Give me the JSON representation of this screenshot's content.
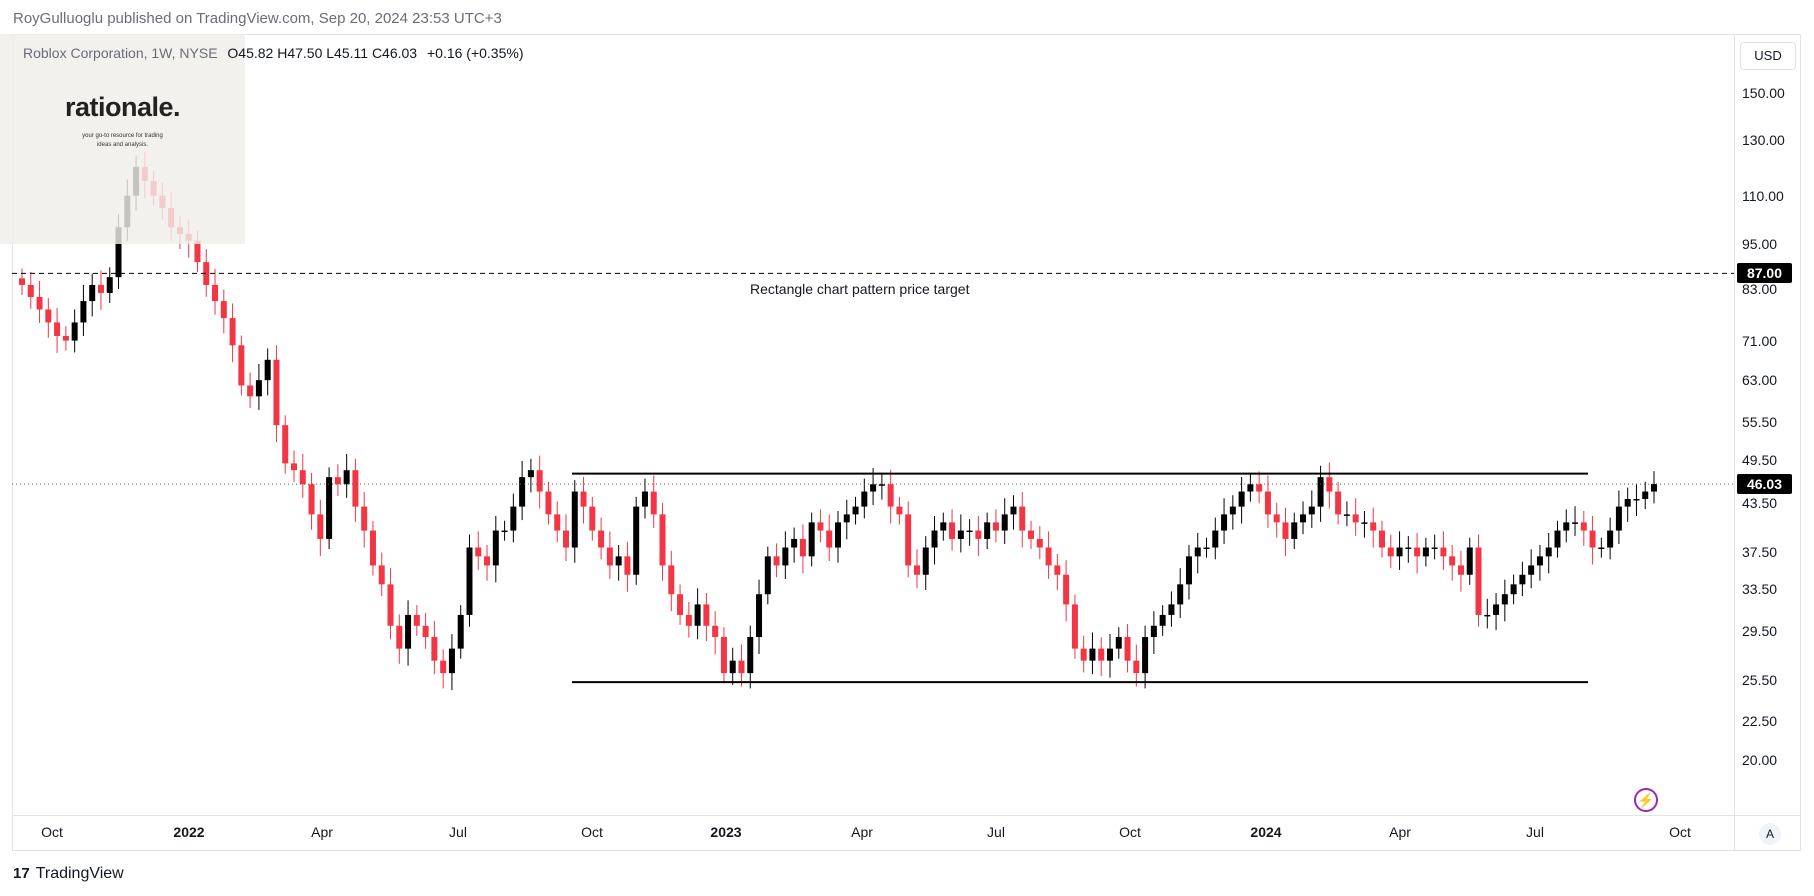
{
  "header": {
    "published": "RoyGulluoglu published on TradingView.com, Sep 20, 2024 23:53 UTC+3"
  },
  "legend": {
    "symbol": "Roblox Corporation, 1W, NYSE",
    "ohlc": "O45.82  H47.50  L45.11  C46.03",
    "change": "+0.16 (+0.35%)"
  },
  "watermark": {
    "word": "rationale.",
    "tagline_1": "your go-to resource for trading",
    "tagline_2": "ideas and analysis."
  },
  "price_axis": {
    "currency": "USD",
    "ticks": [
      "150.00",
      "130.00",
      "110.00",
      "95.00",
      "83.00",
      "71.00",
      "63.00",
      "55.50",
      "49.50",
      "43.50",
      "37.50",
      "33.50",
      "29.50",
      "25.50",
      "22.50",
      "20.00"
    ],
    "target_label": "87.00",
    "current_label": "46.03"
  },
  "time_axis": {
    "ticks": [
      {
        "label": "Oct",
        "year": false
      },
      {
        "label": "2022",
        "year": true
      },
      {
        "label": "Apr",
        "year": false
      },
      {
        "label": "Jul",
        "year": false
      },
      {
        "label": "Oct",
        "year": false
      },
      {
        "label": "2023",
        "year": true
      },
      {
        "label": "Apr",
        "year": false
      },
      {
        "label": "Jul",
        "year": false
      },
      {
        "label": "Oct",
        "year": false
      },
      {
        "label": "2024",
        "year": true
      },
      {
        "label": "Apr",
        "year": false
      },
      {
        "label": "Jul",
        "year": false
      },
      {
        "label": "Oct",
        "year": false
      }
    ]
  },
  "annotation": "Rectangle chart pattern price target",
  "icons": {
    "lightning": "lightning-icon",
    "auto": "A"
  },
  "footer": {
    "brand": "TradingView",
    "logo": "17"
  },
  "colors": {
    "up": "#000000",
    "down": "#f23645",
    "target_line": "#000000"
  },
  "chart_data": {
    "type": "candlestick",
    "title": "Roblox Corporation, 1W, NYSE",
    "scale": "log",
    "ylim": [
      18.5,
      165
    ],
    "levels": {
      "price_target": 87.0,
      "resistance": 47.5,
      "support": 25.3,
      "last": 46.03
    },
    "weekly_closes": [
      84,
      81,
      78,
      75,
      72,
      71,
      75,
      80,
      84,
      82,
      86,
      100,
      110,
      120,
      115,
      110,
      106,
      100,
      98,
      96,
      90,
      84,
      80,
      76,
      70,
      62,
      60,
      63,
      67,
      55,
      49,
      48,
      46,
      42,
      39,
      47,
      46,
      48,
      43,
      40,
      36,
      34,
      30,
      28,
      31,
      30,
      29,
      27,
      26,
      28,
      31,
      38,
      37,
      36,
      40,
      40,
      43,
      47,
      48,
      45,
      42,
      40,
      38,
      45,
      43,
      40,
      38,
      36,
      37,
      35,
      43,
      45,
      42,
      36,
      33,
      31,
      30,
      32,
      30,
      29,
      26,
      27,
      26,
      29,
      33,
      37,
      36,
      38,
      39,
      37,
      41,
      40,
      38,
      41,
      42,
      43,
      45,
      46,
      46,
      43,
      42,
      36,
      35,
      38,
      40,
      41,
      39,
      40,
      40,
      39,
      41,
      40,
      42,
      43,
      40,
      39,
      38,
      36,
      35,
      32,
      28,
      27,
      28,
      27,
      28,
      29,
      27,
      26,
      29,
      30,
      31,
      32,
      34,
      37,
      38,
      38,
      40,
      42,
      43,
      45,
      46,
      45,
      42,
      41,
      39,
      41,
      42,
      43,
      47,
      45,
      42,
      42,
      41,
      41,
      40,
      38,
      37,
      38,
      38,
      37,
      38,
      38,
      37,
      36,
      35,
      38,
      31,
      31,
      32,
      33,
      34,
      35,
      36,
      37,
      38,
      40,
      41,
      41,
      40,
      38,
      38,
      40,
      43,
      44,
      44,
      45,
      46.03
    ]
  }
}
